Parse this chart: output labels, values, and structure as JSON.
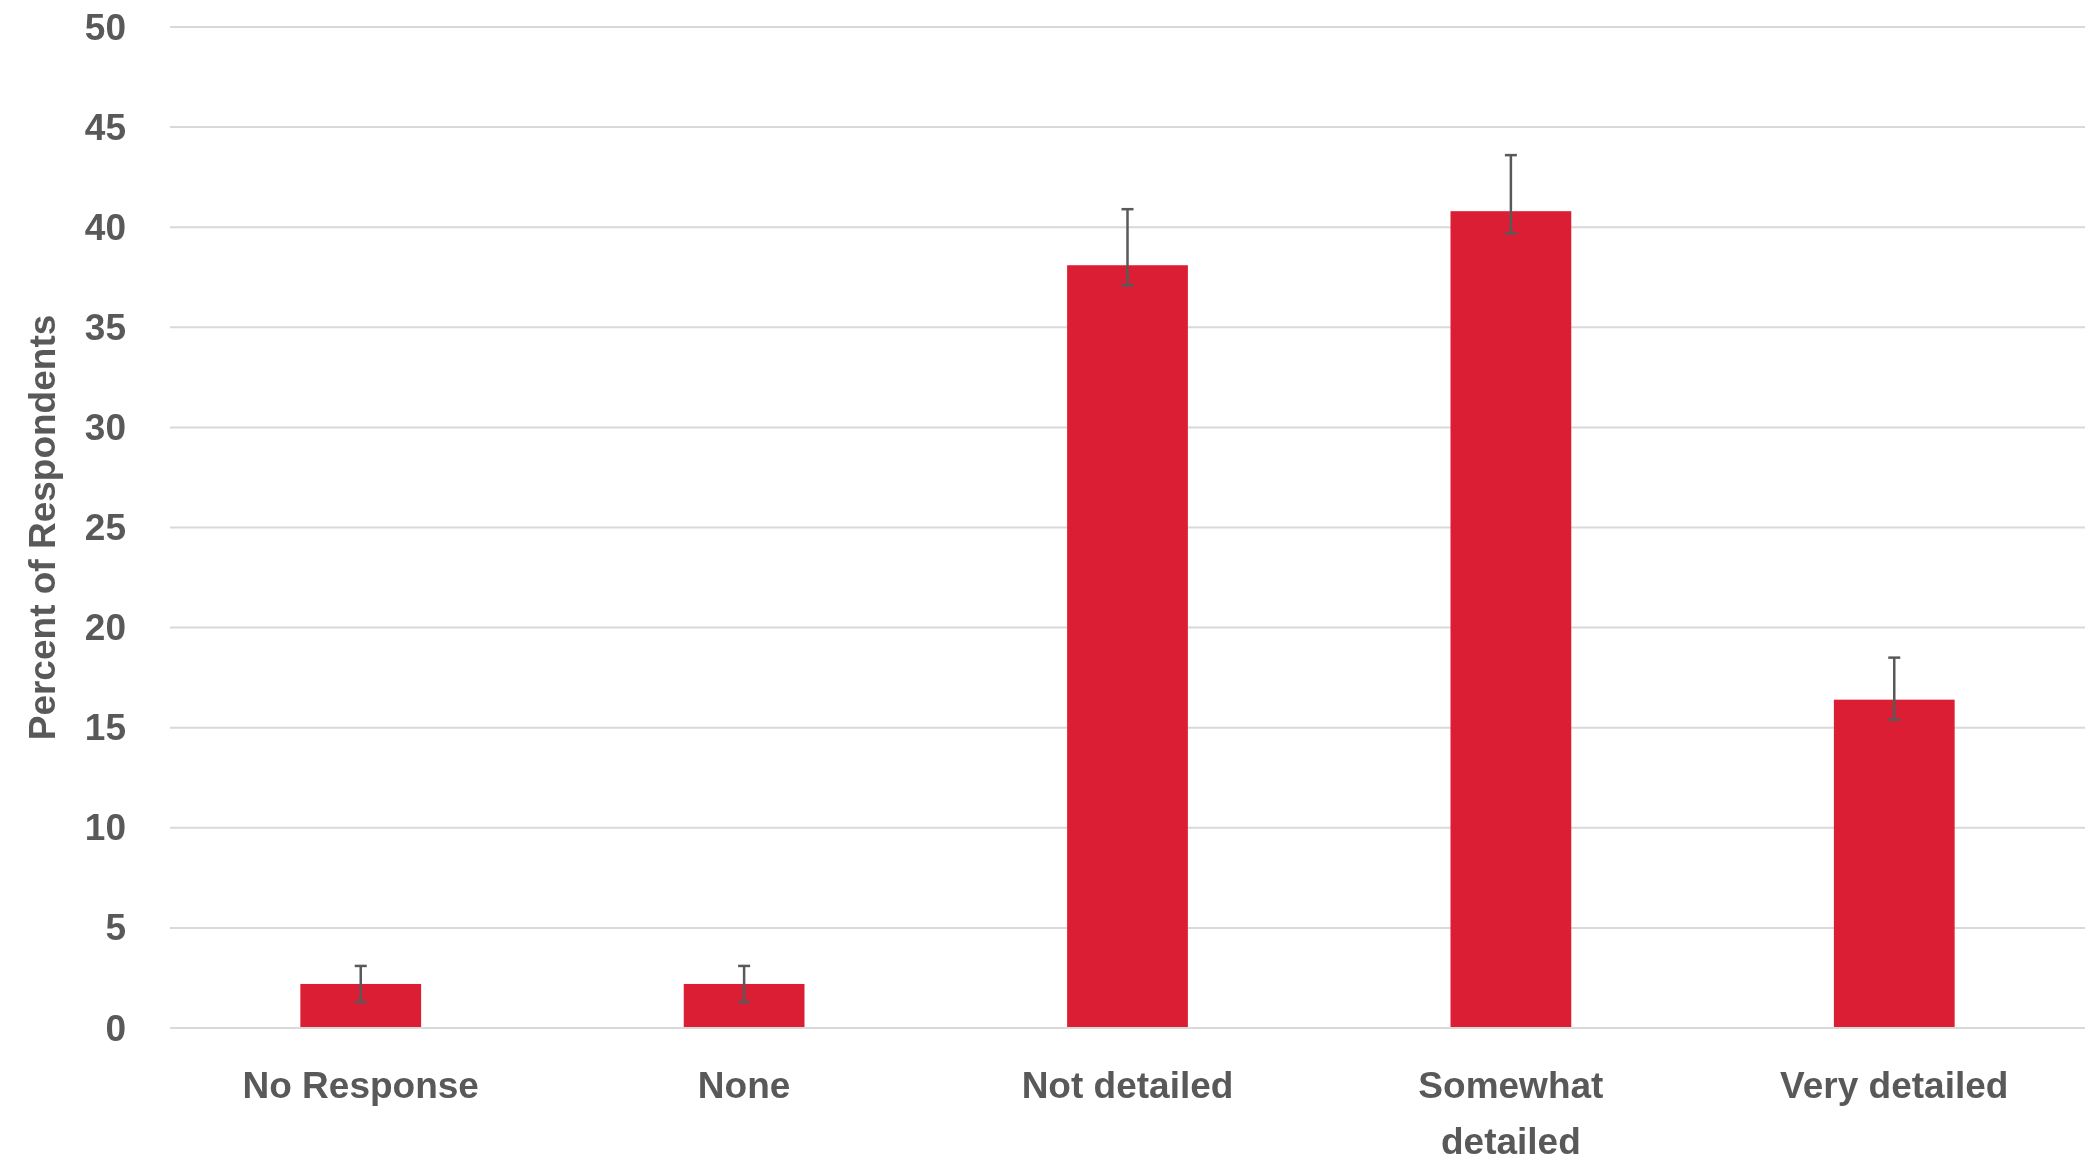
{
  "chart_data": {
    "type": "bar",
    "ylabel": "Percent of Respondents",
    "categories": [
      "No Response",
      "None",
      "Not detailed",
      "Somewhat detailed",
      "Very detailed"
    ],
    "values": [
      2.2,
      2.2,
      38.1,
      40.8,
      16.4
    ],
    "errors": [
      [
        1.3,
        3.1
      ],
      [
        1.3,
        3.1
      ],
      [
        37.1,
        40.9
      ],
      [
        39.7,
        43.6
      ],
      [
        15.4,
        18.5
      ]
    ],
    "color": "#dc1e34",
    "ylim": [
      0,
      50
    ],
    "yticks": [
      0,
      5,
      10,
      15,
      20,
      25,
      30,
      35,
      40,
      45,
      50
    ],
    "grid": "y"
  }
}
